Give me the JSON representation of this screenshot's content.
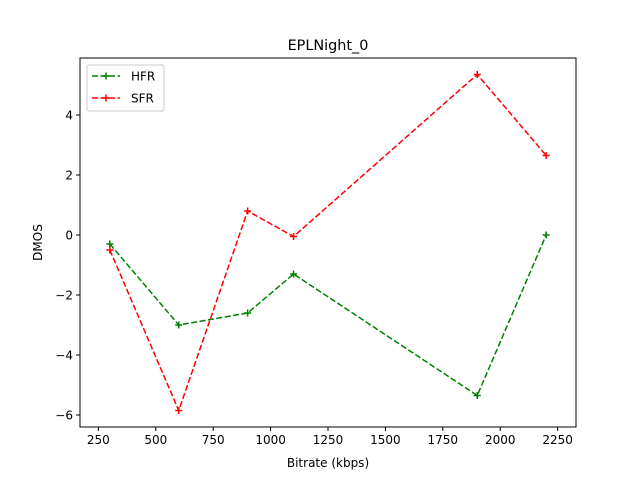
{
  "chart_data": {
    "type": "line",
    "title": "EPLNight_0",
    "xlabel": "Bitrate (kbps)",
    "ylabel": "DMOS",
    "xlim": [
      170,
      2330
    ],
    "ylim": [
      -6.4,
      5.9
    ],
    "xticks": [
      250,
      500,
      750,
      1000,
      1250,
      1500,
      1750,
      2000,
      2250
    ],
    "yticks": [
      -6,
      -4,
      -2,
      0,
      2,
      4
    ],
    "x": [
      300,
      600,
      900,
      1100,
      1900,
      2200
    ],
    "series": [
      {
        "name": "HFR",
        "color": "#008000",
        "linestyle": "dashed",
        "marker": "plus",
        "values": [
          -0.3,
          -3.0,
          -2.6,
          -1.3,
          -5.35,
          0.0
        ]
      },
      {
        "name": "SFR",
        "color": "#ff0000",
        "linestyle": "dashed",
        "marker": "plus",
        "values": [
          -0.5,
          -5.85,
          0.8,
          -0.05,
          5.35,
          2.65
        ]
      }
    ],
    "legend": "upper-left",
    "grid": false
  }
}
